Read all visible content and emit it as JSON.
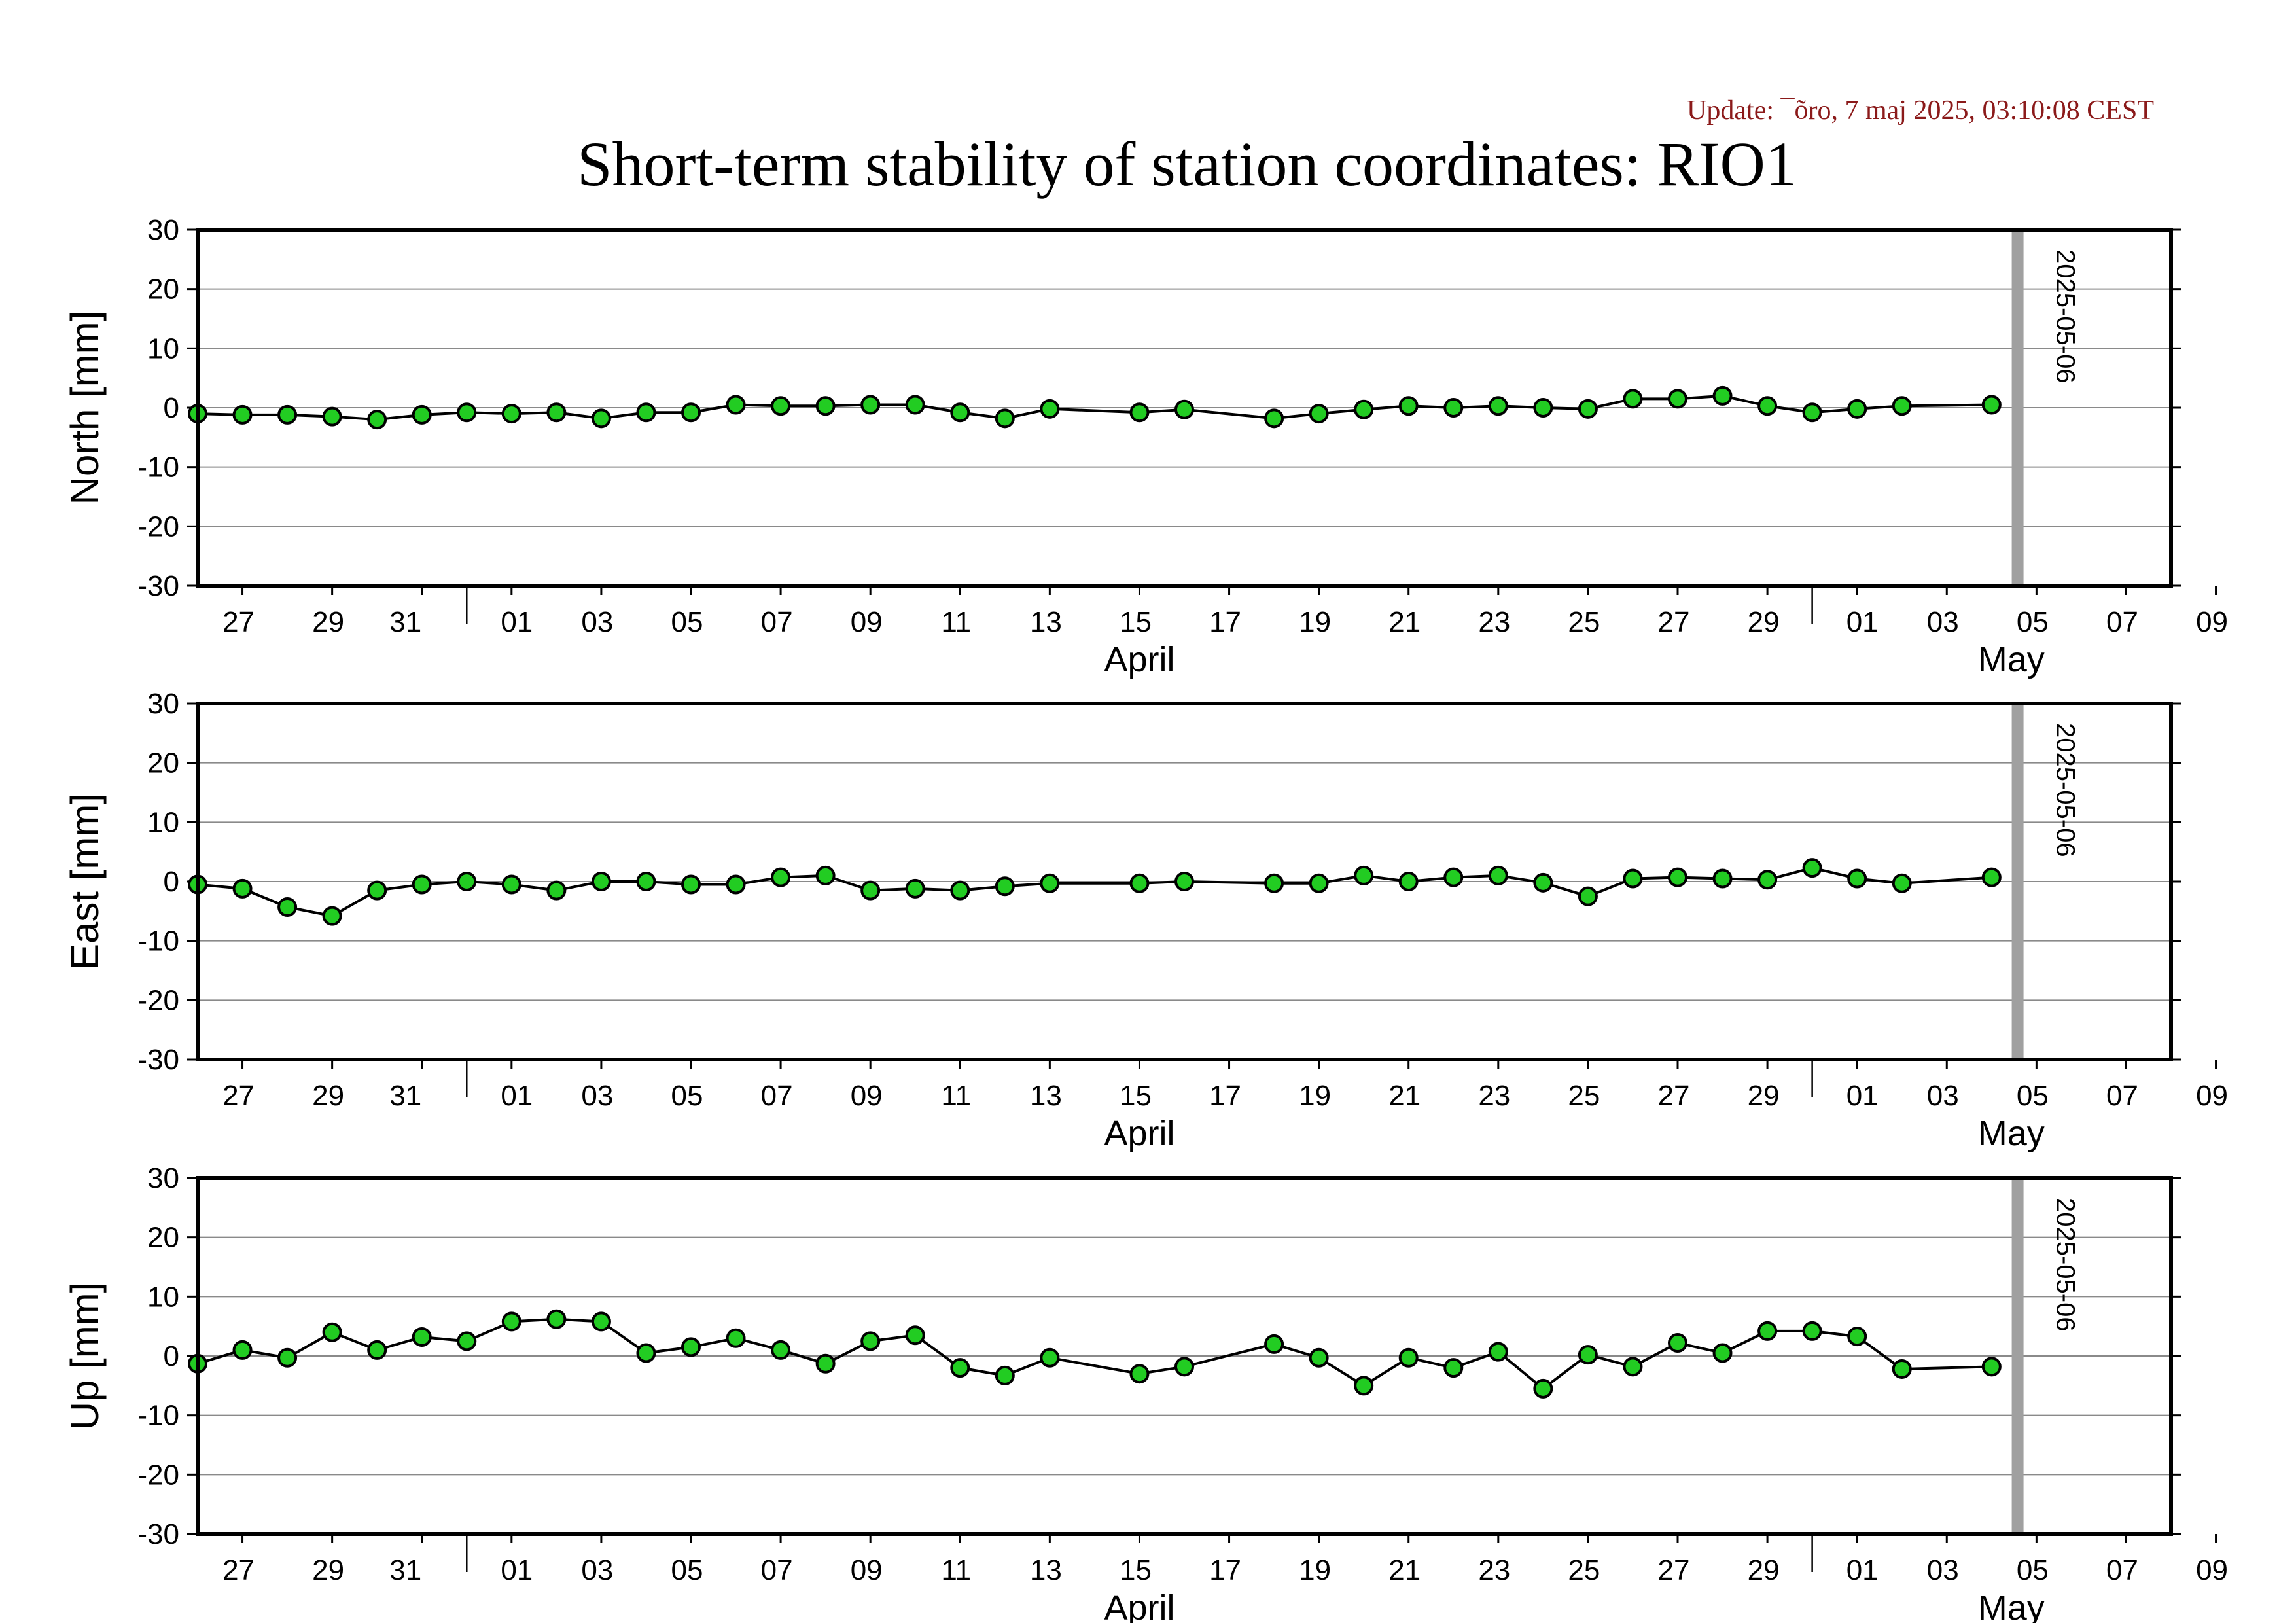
{
  "header": {
    "update_text": "Update: ¯õro, 7 maj 2025, 03:10:08 CEST",
    "update_color": "#8b1a1a",
    "title": "Short-term stability of station coordinates: RIO1"
  },
  "colors": {
    "marker_fill": "#22cc22",
    "marker_edge": "#000000",
    "line": "#000000",
    "grid": "#8a8a8a",
    "current_day_bar": "#a0a0a0"
  },
  "chart_data": [
    {
      "type": "line",
      "title": "",
      "ylabel": "North [mm]",
      "ylim": [
        -30,
        30
      ],
      "yticks": [
        30,
        20,
        10,
        0,
        -10,
        -20,
        -30
      ],
      "xlim": [
        "2025-03-26",
        "2025-05-09"
      ],
      "grid": "horizontal",
      "month_labels": [
        "April",
        "May"
      ],
      "day_tick_labels": [
        "27",
        "29",
        "31",
        "01",
        "03",
        "05",
        "07",
        "09",
        "11",
        "13",
        "15",
        "17",
        "19",
        "21",
        "23",
        "25",
        "27",
        "29",
        "01",
        "03",
        "05",
        "07",
        "09"
      ],
      "marker_label": "2025-05-06",
      "x": [
        "2025-03-26",
        "2025-03-27",
        "2025-03-28",
        "2025-03-29",
        "2025-03-30",
        "2025-03-31",
        "2025-04-01",
        "2025-04-02",
        "2025-04-03",
        "2025-04-04",
        "2025-04-05",
        "2025-04-06",
        "2025-04-07",
        "2025-04-08",
        "2025-04-09",
        "2025-04-10",
        "2025-04-11",
        "2025-04-12",
        "2025-04-13",
        "2025-04-14",
        "2025-04-16",
        "2025-04-17",
        "2025-04-19",
        "2025-04-20",
        "2025-04-21",
        "2025-04-22",
        "2025-04-23",
        "2025-04-24",
        "2025-04-25",
        "2025-04-26",
        "2025-04-27",
        "2025-04-28",
        "2025-04-29",
        "2025-04-30",
        "2025-05-01",
        "2025-05-02",
        "2025-05-03",
        "2025-05-05"
      ],
      "values": [
        -1,
        -1.2,
        -1.2,
        -1.5,
        -2,
        -1.2,
        -0.8,
        -1,
        -0.8,
        -1.8,
        -0.8,
        -0.8,
        0.5,
        0.3,
        0.3,
        0.5,
        0.5,
        -0.8,
        -1.8,
        -0.2,
        -0.8,
        -0.3,
        -1.8,
        -1,
        -0.3,
        0.3,
        0,
        0.3,
        0,
        -0.2,
        1.5,
        1.5,
        2,
        0.3,
        -0.8,
        -0.2,
        0.3,
        0.5
      ]
    },
    {
      "type": "line",
      "title": "",
      "ylabel": "East [mm]",
      "ylim": [
        -30,
        30
      ],
      "yticks": [
        30,
        20,
        10,
        0,
        -10,
        -20,
        -30
      ],
      "xlim": [
        "2025-03-26",
        "2025-05-09"
      ],
      "grid": "horizontal",
      "month_labels": [
        "April",
        "May"
      ],
      "day_tick_labels": [
        "27",
        "29",
        "31",
        "01",
        "03",
        "05",
        "07",
        "09",
        "11",
        "13",
        "15",
        "17",
        "19",
        "21",
        "23",
        "25",
        "27",
        "29",
        "01",
        "03",
        "05",
        "07",
        "09"
      ],
      "marker_label": "2025-05-06",
      "x": [
        "2025-03-26",
        "2025-03-27",
        "2025-03-28",
        "2025-03-29",
        "2025-03-30",
        "2025-03-31",
        "2025-04-01",
        "2025-04-02",
        "2025-04-03",
        "2025-04-04",
        "2025-04-05",
        "2025-04-06",
        "2025-04-07",
        "2025-04-08",
        "2025-04-09",
        "2025-04-10",
        "2025-04-11",
        "2025-04-12",
        "2025-04-13",
        "2025-04-14",
        "2025-04-16",
        "2025-04-17",
        "2025-04-19",
        "2025-04-20",
        "2025-04-21",
        "2025-04-22",
        "2025-04-23",
        "2025-04-24",
        "2025-04-25",
        "2025-04-26",
        "2025-04-27",
        "2025-04-28",
        "2025-04-29",
        "2025-04-30",
        "2025-05-01",
        "2025-05-02",
        "2025-05-03",
        "2025-05-05"
      ],
      "values": [
        -0.5,
        -1.2,
        -4.3,
        -5.8,
        -1.5,
        -0.5,
        0,
        -0.5,
        -1.5,
        0,
        0,
        -0.5,
        -0.5,
        0.7,
        1,
        -1.5,
        -1.2,
        -1.5,
        -0.8,
        -0.3,
        -0.3,
        0,
        -0.3,
        -0.3,
        1,
        0,
        0.7,
        1,
        -0.2,
        -2.5,
        0.5,
        0.7,
        0.5,
        0.3,
        2.3,
        0.5,
        -0.3,
        0.7
      ]
    },
    {
      "type": "line",
      "title": "",
      "ylabel": "Up [mm]",
      "ylim": [
        -30,
        30
      ],
      "yticks": [
        30,
        20,
        10,
        0,
        -10,
        -20,
        -30
      ],
      "xlim": [
        "2025-03-26",
        "2025-05-09"
      ],
      "grid": "horizontal",
      "month_labels": [
        "April",
        "May"
      ],
      "day_tick_labels": [
        "27",
        "29",
        "31",
        "01",
        "03",
        "05",
        "07",
        "09",
        "11",
        "13",
        "15",
        "17",
        "19",
        "21",
        "23",
        "25",
        "27",
        "29",
        "01",
        "03",
        "05",
        "07",
        "09"
      ],
      "marker_label": "2025-05-06",
      "x": [
        "2025-03-26",
        "2025-03-27",
        "2025-03-28",
        "2025-03-29",
        "2025-03-30",
        "2025-03-31",
        "2025-04-01",
        "2025-04-02",
        "2025-04-03",
        "2025-04-04",
        "2025-04-05",
        "2025-04-06",
        "2025-04-07",
        "2025-04-08",
        "2025-04-09",
        "2025-04-10",
        "2025-04-11",
        "2025-04-12",
        "2025-04-13",
        "2025-04-14",
        "2025-04-16",
        "2025-04-17",
        "2025-04-19",
        "2025-04-20",
        "2025-04-21",
        "2025-04-22",
        "2025-04-23",
        "2025-04-24",
        "2025-04-25",
        "2025-04-26",
        "2025-04-27",
        "2025-04-28",
        "2025-04-29",
        "2025-04-30",
        "2025-05-01",
        "2025-05-02",
        "2025-05-03",
        "2025-05-05"
      ],
      "values": [
        -1.3,
        1,
        -0.3,
        4,
        1,
        3.2,
        2.5,
        5.8,
        6.2,
        5.8,
        0.5,
        1.5,
        3,
        1,
        -1.3,
        2.5,
        3.5,
        -2,
        -3.3,
        -0.3,
        -3,
        -1.8,
        2,
        -0.3,
        -5,
        -0.3,
        -2,
        0.7,
        -5.5,
        0.2,
        -1.8,
        2.2,
        0.5,
        4.2,
        4.2,
        3.3,
        -2.2,
        -1.8
      ]
    }
  ]
}
